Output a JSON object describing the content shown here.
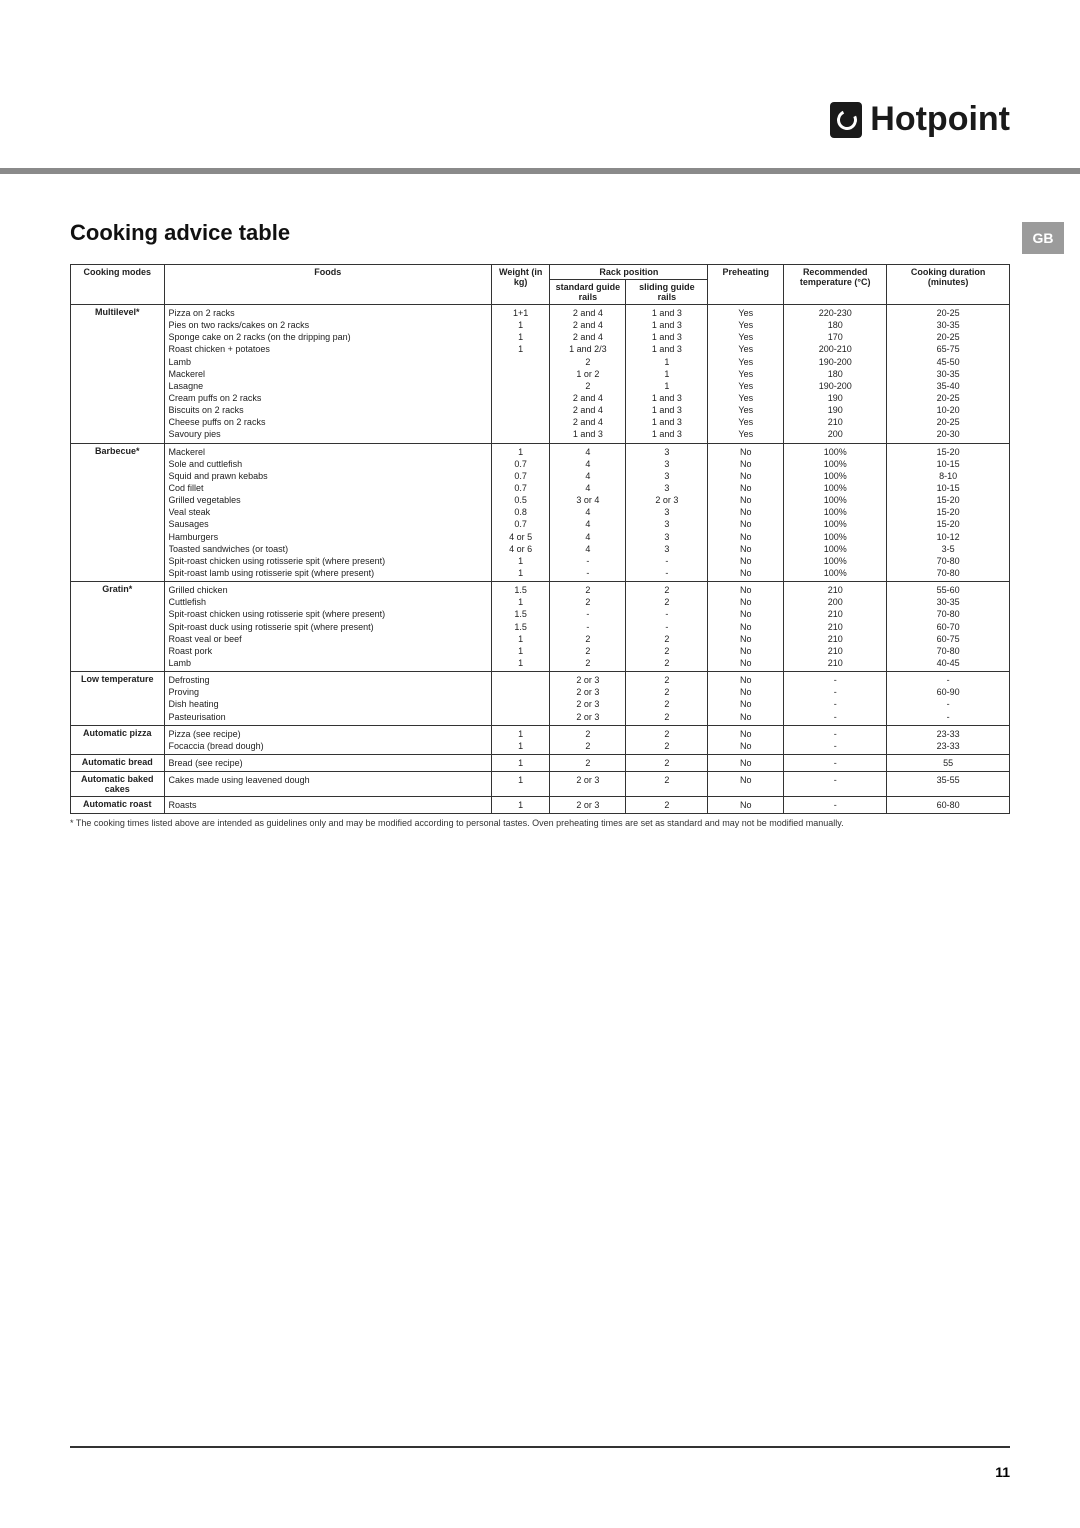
{
  "brand": {
    "name": "Hotpoint"
  },
  "lang_tab": "GB",
  "heading": "Cooking advice table",
  "page_number": "11",
  "footnote": "* The cooking times listed above are intended as guidelines only and may be modified according to personal tastes. Oven preheating times are set as standard and may not be modified manually.",
  "headers": {
    "modes": "Cooking modes",
    "foods": "Foods",
    "weight": "Weight (in kg)",
    "rack": "Rack position",
    "rack_std": "standard guide rails",
    "rack_slide": "sliding guide rails",
    "preheat": "Preheating",
    "temp": "Recommended temperature (°C)",
    "duration": "Cooking duration (minutes)"
  },
  "col_widths": {
    "modes": "80px",
    "foods": "280px",
    "weight": "50px",
    "rack_std": "65px",
    "rack_slide": "70px",
    "preheat": "65px",
    "temp": "88px",
    "duration": "105px"
  },
  "sections": [
    {
      "mode": "Multilevel*",
      "rows": [
        {
          "food": "Pizza on 2 racks",
          "wt": "1+1",
          "std": "2 and 4",
          "slide": "1 and 3",
          "pre": "Yes",
          "temp": "220-230",
          "dur": "20-25"
        },
        {
          "food": "Pies on two racks/cakes on 2 racks",
          "wt": "1",
          "std": "2 and 4",
          "slide": "1 and 3",
          "pre": "Yes",
          "temp": "180",
          "dur": "30-35"
        },
        {
          "food": "Sponge cake on 2 racks (on the dripping pan)",
          "wt": "1",
          "std": "2 and 4",
          "slide": "1 and 3",
          "pre": "Yes",
          "temp": "170",
          "dur": "20-25"
        },
        {
          "food": "Roast chicken + potatoes",
          "wt": "1",
          "std": "1 and 2/3",
          "slide": "1 and 3",
          "pre": "Yes",
          "temp": "200-210",
          "dur": "65-75"
        },
        {
          "food": "Lamb",
          "wt": "",
          "std": "2",
          "slide": "1",
          "pre": "Yes",
          "temp": "190-200",
          "dur": "45-50"
        },
        {
          "food": "Mackerel",
          "wt": "",
          "std": "1 or 2",
          "slide": "1",
          "pre": "Yes",
          "temp": "180",
          "dur": "30-35"
        },
        {
          "food": "Lasagne",
          "wt": "",
          "std": "2",
          "slide": "1",
          "pre": "Yes",
          "temp": "190-200",
          "dur": "35-40"
        },
        {
          "food": "Cream puffs on 2 racks",
          "wt": "",
          "std": "2 and 4",
          "slide": "1 and 3",
          "pre": "Yes",
          "temp": "190",
          "dur": "20-25"
        },
        {
          "food": "Biscuits on 2 racks",
          "wt": "",
          "std": "2 and 4",
          "slide": "1 and 3",
          "pre": "Yes",
          "temp": "190",
          "dur": "10-20"
        },
        {
          "food": "Cheese puffs on 2 racks",
          "wt": "",
          "std": "2 and 4",
          "slide": "1 and 3",
          "pre": "Yes",
          "temp": "210",
          "dur": "20-25"
        },
        {
          "food": "Savoury pies",
          "wt": "",
          "std": "1 and 3",
          "slide": "1 and 3",
          "pre": "Yes",
          "temp": "200",
          "dur": "20-30"
        }
      ]
    },
    {
      "mode": "Barbecue*",
      "rows": [
        {
          "food": "Mackerel",
          "wt": "1",
          "std": "4",
          "slide": "3",
          "pre": "No",
          "temp": "100%",
          "dur": "15-20"
        },
        {
          "food": "Sole and cuttlefish",
          "wt": "0.7",
          "std": "4",
          "slide": "3",
          "pre": "No",
          "temp": "100%",
          "dur": "10-15"
        },
        {
          "food": "Squid and prawn kebabs",
          "wt": "0.7",
          "std": "4",
          "slide": "3",
          "pre": "No",
          "temp": "100%",
          "dur": "8-10"
        },
        {
          "food": "Cod fillet",
          "wt": "0.7",
          "std": "4",
          "slide": "3",
          "pre": "No",
          "temp": "100%",
          "dur": "10-15"
        },
        {
          "food": "Grilled vegetables",
          "wt": "0.5",
          "std": "3 or 4",
          "slide": "2 or 3",
          "pre": "No",
          "temp": "100%",
          "dur": "15-20"
        },
        {
          "food": "Veal steak",
          "wt": "0.8",
          "std": "4",
          "slide": "3",
          "pre": "No",
          "temp": "100%",
          "dur": "15-20"
        },
        {
          "food": "Sausages",
          "wt": "0.7",
          "std": "4",
          "slide": "3",
          "pre": "No",
          "temp": "100%",
          "dur": "15-20"
        },
        {
          "food": "Hamburgers",
          "wt": "4 or 5",
          "std": "4",
          "slide": "3",
          "pre": "No",
          "temp": "100%",
          "dur": "10-12"
        },
        {
          "food": "Toasted sandwiches (or toast)",
          "wt": "4 or 6",
          "std": "4",
          "slide": "3",
          "pre": "No",
          "temp": "100%",
          "dur": "3-5"
        },
        {
          "food": "Spit-roast chicken using rotisserie spit (where present)",
          "wt": "1",
          "std": "-",
          "slide": "-",
          "pre": "No",
          "temp": "100%",
          "dur": "70-80"
        },
        {
          "food": "Spit-roast lamb using rotisserie spit (where present)",
          "wt": "1",
          "std": "-",
          "slide": "-",
          "pre": "No",
          "temp": "100%",
          "dur": "70-80"
        }
      ]
    },
    {
      "mode": "Gratin*",
      "rows": [
        {
          "food": "Grilled chicken",
          "wt": "1.5",
          "std": "2",
          "slide": "2",
          "pre": "No",
          "temp": "210",
          "dur": "55-60"
        },
        {
          "food": "Cuttlefish",
          "wt": "1",
          "std": "2",
          "slide": "2",
          "pre": "No",
          "temp": "200",
          "dur": "30-35"
        },
        {
          "food": "Spit-roast chicken using rotisserie spit (where present)",
          "wt": "1.5",
          "std": "-",
          "slide": "-",
          "pre": "No",
          "temp": "210",
          "dur": "70-80"
        },
        {
          "food": "Spit-roast duck using rotisserie spit (where present)",
          "wt": "1.5",
          "std": "-",
          "slide": "-",
          "pre": "No",
          "temp": "210",
          "dur": "60-70"
        },
        {
          "food": "Roast veal or beef",
          "wt": "1",
          "std": "2",
          "slide": "2",
          "pre": "No",
          "temp": "210",
          "dur": "60-75"
        },
        {
          "food": "Roast pork",
          "wt": "1",
          "std": "2",
          "slide": "2",
          "pre": "No",
          "temp": "210",
          "dur": "70-80"
        },
        {
          "food": "Lamb",
          "wt": "1",
          "std": "2",
          "slide": "2",
          "pre": "No",
          "temp": "210",
          "dur": "40-45"
        }
      ]
    },
    {
      "mode": "Low temperature",
      "rows": [
        {
          "food": "Defrosting",
          "wt": "",
          "std": "2 or 3",
          "slide": "2",
          "pre": "No",
          "temp": "-",
          "dur": "-"
        },
        {
          "food": "Proving",
          "wt": "",
          "std": "2 or 3",
          "slide": "2",
          "pre": "No",
          "temp": "-",
          "dur": "60-90"
        },
        {
          "food": "Dish heating",
          "wt": "",
          "std": "2 or 3",
          "slide": "2",
          "pre": "No",
          "temp": "-",
          "dur": "-"
        },
        {
          "food": "Pasteurisation",
          "wt": "",
          "std": "2 or 3",
          "slide": "2",
          "pre": "No",
          "temp": "-",
          "dur": "-"
        }
      ]
    },
    {
      "mode": "Automatic pizza",
      "rows": [
        {
          "food": "Pizza (see recipe)",
          "wt": "1",
          "std": "2",
          "slide": "2",
          "pre": "No",
          "temp": "-",
          "dur": "23-33"
        },
        {
          "food": "Focaccia (bread dough)",
          "wt": "1",
          "std": "2",
          "slide": "2",
          "pre": "No",
          "temp": "-",
          "dur": "23-33"
        }
      ]
    },
    {
      "mode": "Automatic bread",
      "rows": [
        {
          "food": "Bread (see recipe)",
          "wt": "1",
          "std": "2",
          "slide": "2",
          "pre": "No",
          "temp": "-",
          "dur": "55"
        }
      ]
    },
    {
      "mode": "Automatic baked cakes",
      "rows": [
        {
          "food": "Cakes made using leavened dough",
          "wt": "1",
          "std": "2 or 3",
          "slide": "2",
          "pre": "No",
          "temp": "-",
          "dur": "35-55"
        }
      ]
    },
    {
      "mode": "Automatic roast",
      "rows": [
        {
          "food": "Roasts",
          "wt": "1",
          "std": "2 or 3",
          "slide": "2",
          "pre": "No",
          "temp": "-",
          "dur": "60-80"
        }
      ]
    }
  ]
}
